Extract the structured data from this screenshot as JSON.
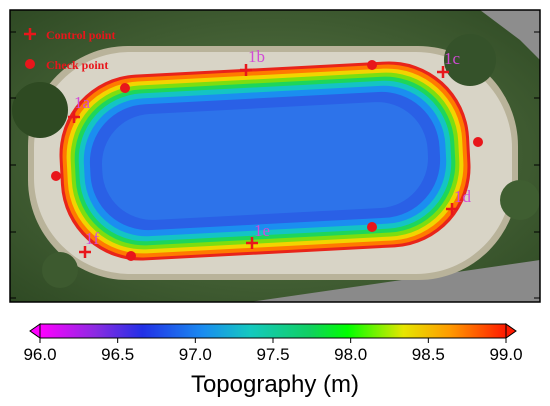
{
  "legend": {
    "control_label": "Control point",
    "check_label": "Check point"
  },
  "control_points": [
    {
      "label": "1a"
    },
    {
      "label": "1b"
    },
    {
      "label": "1c"
    },
    {
      "label": "1d"
    },
    {
      "label": "1e"
    },
    {
      "label": "1f"
    }
  ],
  "colorbar": {
    "title": "Topography (m)",
    "ticks": [
      "96.0",
      "96.5",
      "97.0",
      "97.5",
      "98.0",
      "98.5",
      "99.0"
    ],
    "min": 96.0,
    "max": 99.0,
    "extend": "both"
  },
  "colors": {
    "control_marker": "#e8161b",
    "check_marker": "#e8161b",
    "label_color": "#d24bd6",
    "basin_low": "#1f3fd6",
    "basin_high": "#e02a10"
  }
}
